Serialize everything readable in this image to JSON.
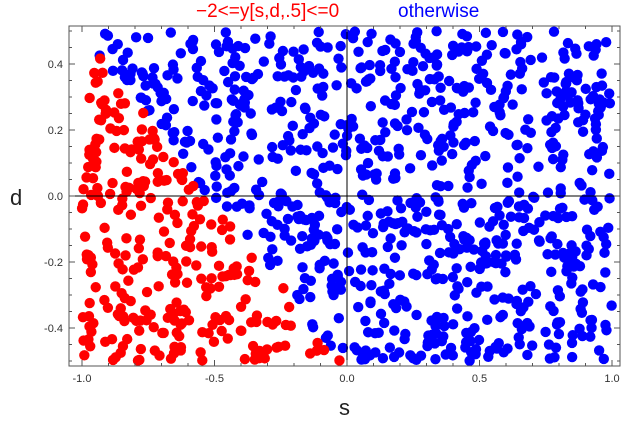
{
  "chart_data": {
    "type": "scatter",
    "title": "",
    "xlabel": "s",
    "ylabel": "d",
    "xlim": [
      -1.02,
      1.02
    ],
    "ylim": [
      -0.52,
      0.52
    ],
    "xticks": [
      "-1.0",
      "-0.5",
      "0.0",
      "0.5",
      "1.0"
    ],
    "xtick_values": [
      -1.0,
      -0.5,
      0.0,
      0.5,
      1.0
    ],
    "yticks": [
      "-0.4",
      "-0.2",
      "0.0",
      "0.2",
      "0.4"
    ],
    "ytick_values": [
      -0.4,
      -0.2,
      0.0,
      0.2,
      0.4
    ],
    "grid": false,
    "legend_placement": "top",
    "series": [
      {
        "name": "−2<=y[s,d,.5]<=0",
        "color": "#ff0000",
        "x_range": [
          -1.0,
          -0.02
        ],
        "y_range": [
          -0.5,
          0.42
        ],
        "boundary": "region left of the curve from (-0.92,0.40) through (-0.75,0.25), (-0.6,0.05), (-0.45,-0.05), (-0.3,-0.2), (-0.15,-0.38) to (-0.02,-0.5)",
        "approx_points": 330
      },
      {
        "name": "otherwise",
        "color": "#0000ff",
        "x_range": [
          -0.9,
          1.0
        ],
        "y_range": [
          -0.5,
          0.5
        ],
        "approx_points": 820
      }
    ]
  }
}
